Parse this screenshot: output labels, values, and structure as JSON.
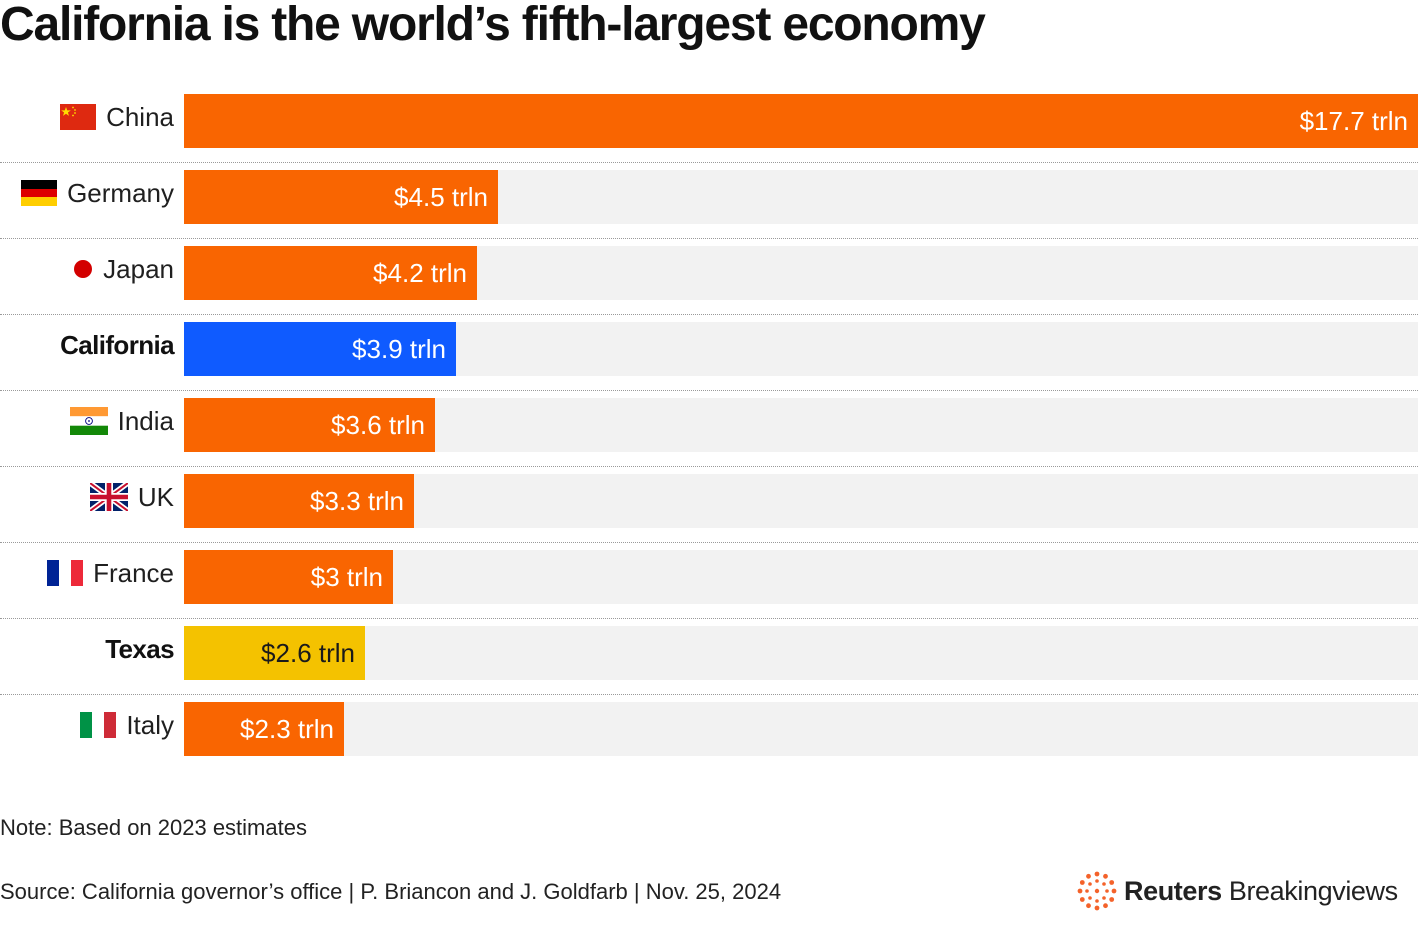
{
  "title": "California is the world’s fifth-largest economy",
  "chart_data": {
    "type": "bar",
    "orientation": "horizontal",
    "title": "California is the world’s fifth-largest economy",
    "unit": "trillion USD",
    "xlim": [
      0,
      17.7
    ],
    "categories": [
      "China",
      "Germany",
      "Japan",
      "California",
      "India",
      "UK",
      "France",
      "Texas",
      "Italy"
    ],
    "values": [
      17.7,
      4.5,
      4.2,
      3.9,
      3.6,
      3.3,
      3.0,
      2.6,
      2.3
    ],
    "value_labels": [
      "$17.7 trln",
      "$4.5 trln",
      "$4.2 trln",
      "$3.9 trln",
      "$3.6 trln",
      "$3.3 trln",
      "$3 trln",
      "$2.6 trln",
      "$2.3 trln"
    ],
    "highlighted": [
      "California",
      "Texas"
    ],
    "flags": [
      "china-flag-icon",
      "germany-flag-icon",
      "japan-flag-icon",
      "",
      "india-flag-icon",
      "uk-flag-icon",
      "france-flag-icon",
      "",
      "italy-flag-icon"
    ],
    "bar_colors": [
      "#f96501",
      "#f96501",
      "#f96501",
      "#0f5bff",
      "#f96501",
      "#f96501",
      "#f96501",
      "#f4c200",
      "#f96501"
    ],
    "label_colors": [
      "#ffffff",
      "#ffffff",
      "#ffffff",
      "#ffffff",
      "#ffffff",
      "#ffffff",
      "#ffffff",
      "#1a1a1a",
      "#ffffff"
    ]
  },
  "colors": {
    "country_bar": "#f96501",
    "california_bar": "#0f5bff",
    "texas_bar": "#f4c200",
    "track": "#f2f2f2",
    "brand_accent": "#f4622a"
  },
  "note": "Note: Based on 2023 estimates",
  "source": "Source: California governor’s office | P. Briancon and J. Goldfarb | Nov. 25, 2024",
  "brand": {
    "bold": "Reuters",
    "light": "Breakingviews",
    "icon": "reuters-logo-icon"
  }
}
